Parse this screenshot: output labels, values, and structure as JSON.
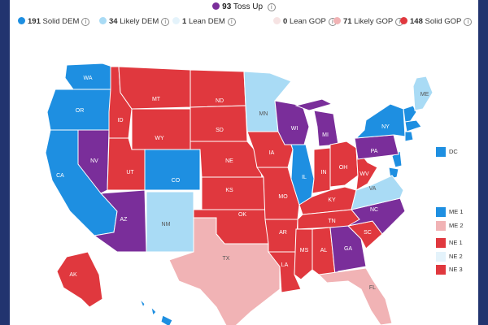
{
  "colors": {
    "solid_dem": "#1e8fe1",
    "likely_dem": "#a9dbf5",
    "lean_dem": "#e4f3fb",
    "toss_up": "#7a2e9a",
    "lean_gop": "#f6e3e3",
    "likely_gop": "#f1b3b5",
    "solid_gop": "#e0383e",
    "background_frame": "#1f2f6b"
  },
  "header": {
    "toss_up": {
      "count": "93",
      "label": "Toss Up"
    }
  },
  "legend": {
    "solid_dem": {
      "count": "191",
      "label": "Solid DEM"
    },
    "likely_dem": {
      "count": "34",
      "label": "Likely DEM"
    },
    "lean_dem": {
      "count": "1",
      "label": "Lean DEM"
    },
    "lean_gop": {
      "count": "0",
      "label": "Lean GOP"
    },
    "likely_gop": {
      "count": "71",
      "label": "Likely GOP"
    },
    "solid_gop": {
      "count": "148",
      "label": "Solid GOP"
    }
  },
  "info_glyph": "i",
  "states": [
    {
      "abbr": "WA",
      "rating": "solid_dem"
    },
    {
      "abbr": "OR",
      "rating": "solid_dem"
    },
    {
      "abbr": "CA",
      "rating": "solid_dem"
    },
    {
      "abbr": "NV",
      "rating": "toss_up"
    },
    {
      "abbr": "ID",
      "rating": "solid_gop"
    },
    {
      "abbr": "MT",
      "rating": "solid_gop"
    },
    {
      "abbr": "WY",
      "rating": "solid_gop"
    },
    {
      "abbr": "UT",
      "rating": "solid_gop"
    },
    {
      "abbr": "AZ",
      "rating": "toss_up"
    },
    {
      "abbr": "CO",
      "rating": "solid_dem"
    },
    {
      "abbr": "NM",
      "rating": "likely_dem"
    },
    {
      "abbr": "ND",
      "rating": "solid_gop"
    },
    {
      "abbr": "SD",
      "rating": "solid_gop"
    },
    {
      "abbr": "NE",
      "rating": "solid_gop"
    },
    {
      "abbr": "KS",
      "rating": "solid_gop"
    },
    {
      "abbr": "OK",
      "rating": "solid_gop"
    },
    {
      "abbr": "TX",
      "rating": "likely_gop"
    },
    {
      "abbr": "MN",
      "rating": "likely_dem"
    },
    {
      "abbr": "IA",
      "rating": "solid_gop"
    },
    {
      "abbr": "MO",
      "rating": "solid_gop"
    },
    {
      "abbr": "AR",
      "rating": "solid_gop"
    },
    {
      "abbr": "LA",
      "rating": "solid_gop"
    },
    {
      "abbr": "WI",
      "rating": "toss_up"
    },
    {
      "abbr": "IL",
      "rating": "solid_dem"
    },
    {
      "abbr": "MI",
      "rating": "toss_up"
    },
    {
      "abbr": "IN",
      "rating": "solid_gop"
    },
    {
      "abbr": "OH",
      "rating": "solid_gop"
    },
    {
      "abbr": "KY",
      "rating": "solid_gop"
    },
    {
      "abbr": "TN",
      "rating": "solid_gop"
    },
    {
      "abbr": "MS",
      "rating": "solid_gop"
    },
    {
      "abbr": "AL",
      "rating": "solid_gop"
    },
    {
      "abbr": "GA",
      "rating": "toss_up"
    },
    {
      "abbr": "FL",
      "rating": "likely_gop"
    },
    {
      "abbr": "SC",
      "rating": "solid_gop"
    },
    {
      "abbr": "NC",
      "rating": "toss_up"
    },
    {
      "abbr": "VA",
      "rating": "likely_dem"
    },
    {
      "abbr": "WV",
      "rating": "solid_gop"
    },
    {
      "abbr": "PA",
      "rating": "toss_up"
    },
    {
      "abbr": "NY",
      "rating": "solid_dem"
    },
    {
      "abbr": "ME",
      "rating": "likely_dem"
    },
    {
      "abbr": "AK",
      "rating": "solid_gop"
    },
    {
      "abbr": "HI",
      "rating": "solid_dem"
    }
  ],
  "side_legend": [
    {
      "label": "DC",
      "rating": "solid_dem"
    },
    {
      "label": "ME 1",
      "rating": "solid_dem"
    },
    {
      "label": "ME 2",
      "rating": "likely_gop"
    },
    {
      "label": "NE 1",
      "rating": "solid_gop"
    },
    {
      "label": "NE 2",
      "rating": "lean_dem"
    },
    {
      "label": "NE 3",
      "rating": "solid_gop"
    }
  ]
}
